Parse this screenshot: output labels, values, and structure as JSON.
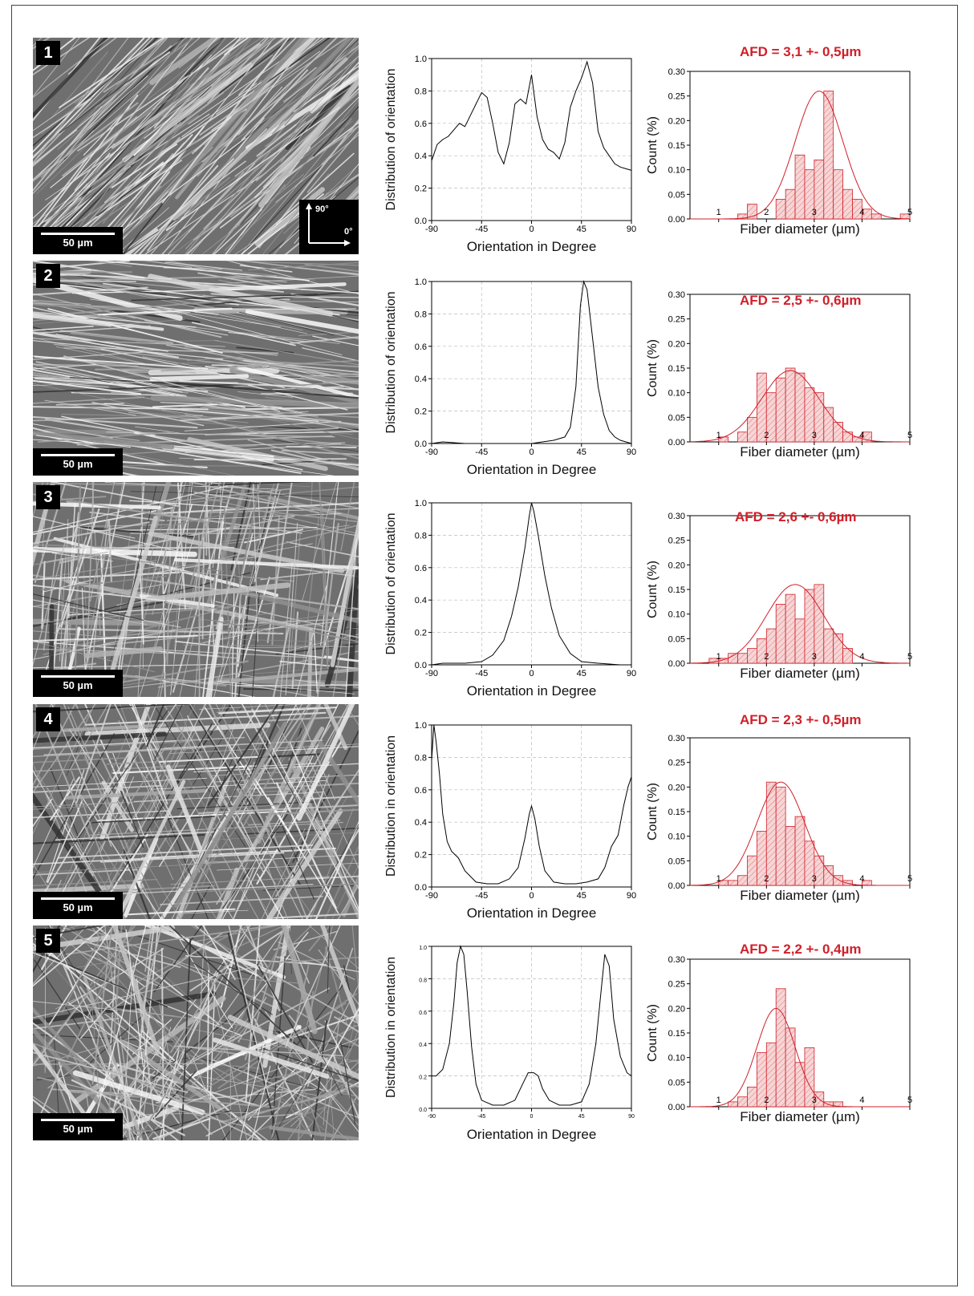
{
  "panels": [
    {
      "number": "1",
      "scale_bar": "50 µm",
      "axis_inset": {
        "up_label": "90°",
        "right_label": "0°"
      },
      "orientation_chart": {
        "type": "line",
        "xlabel": "Orientation in Degree",
        "ylabel": "Distribution of orientation",
        "xlim": [
          -90,
          90
        ],
        "ylim": [
          0,
          1
        ],
        "xticks": [
          "-90",
          "-45",
          "0",
          "45",
          "90"
        ],
        "yticks": [
          "0.0",
          "0.2",
          "0.4",
          "0.6",
          "0.8",
          "1.0"
        ],
        "x": [
          -90,
          -85,
          -80,
          -75,
          -70,
          -65,
          -60,
          -55,
          -50,
          -45,
          -40,
          -35,
          -30,
          -25,
          -20,
          -15,
          -10,
          -5,
          0,
          5,
          10,
          15,
          20,
          25,
          30,
          35,
          40,
          45,
          50,
          55,
          60,
          65,
          70,
          75,
          80,
          85,
          90
        ],
        "y": [
          0.37,
          0.47,
          0.5,
          0.52,
          0.56,
          0.6,
          0.58,
          0.65,
          0.72,
          0.79,
          0.76,
          0.6,
          0.42,
          0.35,
          0.48,
          0.72,
          0.75,
          0.72,
          0.9,
          0.64,
          0.5,
          0.44,
          0.42,
          0.38,
          0.48,
          0.7,
          0.8,
          0.88,
          0.98,
          0.85,
          0.55,
          0.45,
          0.4,
          0.35,
          0.33,
          0.32,
          0.31
        ]
      },
      "diameter_chart": {
        "type": "bar",
        "afd": "AFD = 3,1 +- 0,5µm",
        "xlabel": "Fiber diameter (µm)",
        "ylabel": "Count (%)",
        "xlim": [
          0.4,
          5.0
        ],
        "ylim": [
          0,
          0.3
        ],
        "xticks": [
          "1",
          "2",
          "3",
          "4",
          "5"
        ],
        "yticks": [
          "0.00",
          "0.05",
          "0.10",
          "0.15",
          "0.20",
          "0.25",
          "0.30"
        ],
        "bin_width": 0.2,
        "bin_left": [
          1.4,
          1.6,
          1.8,
          2.0,
          2.2,
          2.4,
          2.6,
          2.8,
          3.0,
          3.2,
          3.4,
          3.6,
          3.8,
          4.0,
          4.2,
          4.4,
          4.6,
          4.8
        ],
        "values": [
          0.01,
          0.03,
          0.0,
          0.0,
          0.04,
          0.06,
          0.13,
          0.1,
          0.12,
          0.26,
          0.1,
          0.06,
          0.04,
          0.02,
          0.01,
          0.0,
          0.0,
          0.01
        ],
        "fit": {
          "mean": 3.1,
          "sd": 0.5,
          "peak": 0.26
        }
      }
    },
    {
      "number": "2",
      "scale_bar": "50 µm",
      "orientation_chart": {
        "type": "line",
        "xlabel": "Orientation in Degree",
        "ylabel": "Distribution of orientation",
        "xlim": [
          -90,
          90
        ],
        "ylim": [
          0,
          1
        ],
        "xticks": [
          "-90",
          "-45",
          "0",
          "45",
          "90"
        ],
        "yticks": [
          "0.0",
          "0.2",
          "0.4",
          "0.6",
          "0.8",
          "1.0"
        ],
        "x": [
          -90,
          -80,
          -60,
          -40,
          -20,
          0,
          10,
          20,
          30,
          35,
          40,
          44,
          47,
          50,
          55,
          60,
          65,
          70,
          75,
          80,
          85,
          90
        ],
        "y": [
          0.0,
          0.01,
          0.0,
          0.0,
          0.0,
          0.0,
          0.01,
          0.02,
          0.04,
          0.1,
          0.35,
          0.85,
          1.0,
          0.95,
          0.65,
          0.35,
          0.18,
          0.08,
          0.04,
          0.02,
          0.01,
          0.0
        ]
      },
      "diameter_chart": {
        "type": "bar",
        "afd": "AFD = 2,5 +- 0,6µm",
        "xlabel": "Fiber diameter (µm)",
        "ylabel": "Count (%)",
        "xlim": [
          0.4,
          5.0
        ],
        "ylim": [
          0,
          0.3
        ],
        "xticks": [
          "1",
          "2",
          "3",
          "4",
          "5"
        ],
        "yticks": [
          "0.00",
          "0.05",
          "0.10",
          "0.15",
          "0.20",
          "0.25",
          "0.30"
        ],
        "bin_width": 0.2,
        "bin_left": [
          1.0,
          1.2,
          1.4,
          1.6,
          1.8,
          2.0,
          2.2,
          2.4,
          2.6,
          2.8,
          3.0,
          3.2,
          3.4,
          3.6,
          3.8,
          4.0
        ],
        "values": [
          0.01,
          0.0,
          0.02,
          0.05,
          0.14,
          0.1,
          0.13,
          0.15,
          0.14,
          0.11,
          0.1,
          0.07,
          0.04,
          0.02,
          0.01,
          0.02
        ],
        "fit": {
          "mean": 2.5,
          "sd": 0.6,
          "peak": 0.145
        }
      }
    },
    {
      "number": "3",
      "scale_bar": "50 µm",
      "orientation_chart": {
        "type": "line",
        "xlabel": "Orientation in Degree",
        "ylabel": "Distribution of orientation",
        "xlim": [
          -90,
          90
        ],
        "ylim": [
          0,
          1
        ],
        "xticks": [
          "-90",
          "-45",
          "0",
          "45",
          "90"
        ],
        "yticks": [
          "0.0",
          "0.2",
          "0.4",
          "0.6",
          "0.8",
          "1.0"
        ],
        "x": [
          -90,
          -80,
          -60,
          -45,
          -35,
          -25,
          -18,
          -12,
          -6,
          -2,
          0,
          2,
          6,
          12,
          18,
          25,
          35,
          45,
          60,
          80,
          90
        ],
        "y": [
          0.0,
          0.01,
          0.01,
          0.02,
          0.06,
          0.15,
          0.3,
          0.48,
          0.72,
          0.92,
          1.0,
          0.95,
          0.8,
          0.55,
          0.35,
          0.18,
          0.07,
          0.02,
          0.01,
          0.0,
          0.0
        ]
      },
      "diameter_chart": {
        "type": "bar",
        "afd": "AFD = 2,6 +- 0,6µm",
        "xlabel": "Fiber diameter (µm)",
        "ylabel": "Count (%)",
        "xlim": [
          0.4,
          5.0
        ],
        "ylim": [
          0,
          0.3
        ],
        "xticks": [
          "1",
          "2",
          "3",
          "4",
          "5"
        ],
        "yticks": [
          "0.00",
          "0.05",
          "0.10",
          "0.15",
          "0.20",
          "0.25",
          "0.30"
        ],
        "bin_width": 0.2,
        "bin_left": [
          0.8,
          1.0,
          1.2,
          1.4,
          1.6,
          1.8,
          2.0,
          2.2,
          2.4,
          2.6,
          2.8,
          3.0,
          3.2,
          3.4,
          3.6
        ],
        "values": [
          0.01,
          0.01,
          0.02,
          0.02,
          0.03,
          0.05,
          0.07,
          0.12,
          0.14,
          0.09,
          0.15,
          0.16,
          0.07,
          0.06,
          0.03
        ],
        "fit": {
          "mean": 2.6,
          "sd": 0.6,
          "peak": 0.16
        }
      }
    },
    {
      "number": "4",
      "scale_bar": "50 µm",
      "orientation_chart": {
        "type": "line",
        "xlabel": "Orientation in Degree",
        "ylabel": "Distribution in orientation",
        "xlim": [
          -90,
          90
        ],
        "ylim": [
          0,
          1
        ],
        "xticks": [
          "-90",
          "-45",
          "0",
          "45",
          "90"
        ],
        "yticks": [
          "0.0",
          "0.2",
          "0.4",
          "0.6",
          "0.8",
          "1.0"
        ],
        "x": [
          -90,
          -88,
          -86,
          -83,
          -80,
          -76,
          -72,
          -66,
          -60,
          -50,
          -40,
          -30,
          -20,
          -12,
          -6,
          -2,
          0,
          3,
          7,
          12,
          20,
          30,
          40,
          50,
          60,
          66,
          72,
          78,
          83,
          87,
          90
        ],
        "y": [
          0.78,
          1.0,
          0.9,
          0.7,
          0.45,
          0.28,
          0.22,
          0.18,
          0.1,
          0.03,
          0.02,
          0.02,
          0.05,
          0.12,
          0.3,
          0.45,
          0.5,
          0.42,
          0.25,
          0.1,
          0.03,
          0.02,
          0.02,
          0.03,
          0.05,
          0.12,
          0.25,
          0.32,
          0.5,
          0.62,
          0.68
        ]
      },
      "diameter_chart": {
        "type": "bar",
        "afd": "AFD = 2,3 +- 0,5µm",
        "xlabel": "Fiber diameter (µm)",
        "ylabel": "Count (%)",
        "xlim": [
          0.4,
          5.0
        ],
        "ylim": [
          0,
          0.3
        ],
        "xticks": [
          "1",
          "2",
          "3",
          "4",
          "5"
        ],
        "yticks": [
          "0.00",
          "0.05",
          "0.10",
          "0.15",
          "0.20",
          "0.25",
          "0.30"
        ],
        "bin_width": 0.2,
        "bin_left": [
          1.0,
          1.2,
          1.4,
          1.6,
          1.8,
          2.0,
          2.2,
          2.4,
          2.6,
          2.8,
          3.0,
          3.2,
          3.4,
          3.6,
          3.8,
          4.0
        ],
        "values": [
          0.01,
          0.01,
          0.02,
          0.06,
          0.11,
          0.21,
          0.2,
          0.12,
          0.14,
          0.09,
          0.06,
          0.04,
          0.02,
          0.01,
          0.0,
          0.01
        ],
        "fit": {
          "mean": 2.3,
          "sd": 0.5,
          "peak": 0.21
        }
      }
    },
    {
      "number": "5",
      "scale_bar": "50 µm",
      "orientation_chart": {
        "type": "line",
        "xlabel": "Orientation in Degree",
        "ylabel": "Distribution in orientation",
        "xlim": [
          -90,
          90
        ],
        "ylim": [
          0,
          1
        ],
        "xticks": [
          "-90",
          "-45",
          "0",
          "45",
          "90"
        ],
        "yticks": [
          "0.0",
          "0.2",
          "0.4",
          "0.6",
          "0.8",
          "1.0"
        ],
        "x": [
          -90,
          -86,
          -80,
          -74,
          -70,
          -67,
          -64,
          -61,
          -58,
          -54,
          -50,
          -45,
          -35,
          -25,
          -15,
          -8,
          -3,
          2,
          6,
          10,
          16,
          25,
          35,
          45,
          52,
          58,
          62,
          66,
          70,
          74,
          80,
          86,
          90
        ],
        "y": [
          0.2,
          0.2,
          0.24,
          0.4,
          0.65,
          0.9,
          1.0,
          0.95,
          0.72,
          0.38,
          0.15,
          0.05,
          0.02,
          0.02,
          0.05,
          0.15,
          0.22,
          0.22,
          0.2,
          0.12,
          0.05,
          0.02,
          0.02,
          0.04,
          0.15,
          0.4,
          0.68,
          0.95,
          0.88,
          0.55,
          0.32,
          0.22,
          0.2
        ]
      },
      "diameter_chart": {
        "type": "bar",
        "afd": "AFD = 2,2 +- 0,4µm",
        "xlabel": "Fiber diameter (µm)",
        "ylabel": "Count (%)",
        "xlim": [
          0.4,
          5.0
        ],
        "ylim": [
          0,
          0.3
        ],
        "xticks": [
          "1",
          "2",
          "3",
          "4",
          "5"
        ],
        "yticks": [
          "0.00",
          "0.05",
          "0.10",
          "0.15",
          "0.20",
          "0.25",
          "0.30"
        ],
        "bin_width": 0.2,
        "bin_left": [
          1.2,
          1.4,
          1.6,
          1.8,
          2.0,
          2.2,
          2.4,
          2.6,
          2.8,
          3.0,
          3.2,
          3.4
        ],
        "values": [
          0.01,
          0.02,
          0.04,
          0.11,
          0.13,
          0.24,
          0.16,
          0.09,
          0.12,
          0.03,
          0.01,
          0.01
        ],
        "fit": {
          "mean": 2.2,
          "sd": 0.4,
          "peak": 0.2
        }
      }
    }
  ],
  "colors": {
    "histogram": "#d0202a",
    "line": "#000000",
    "sem_background": "#7a7a7a"
  }
}
